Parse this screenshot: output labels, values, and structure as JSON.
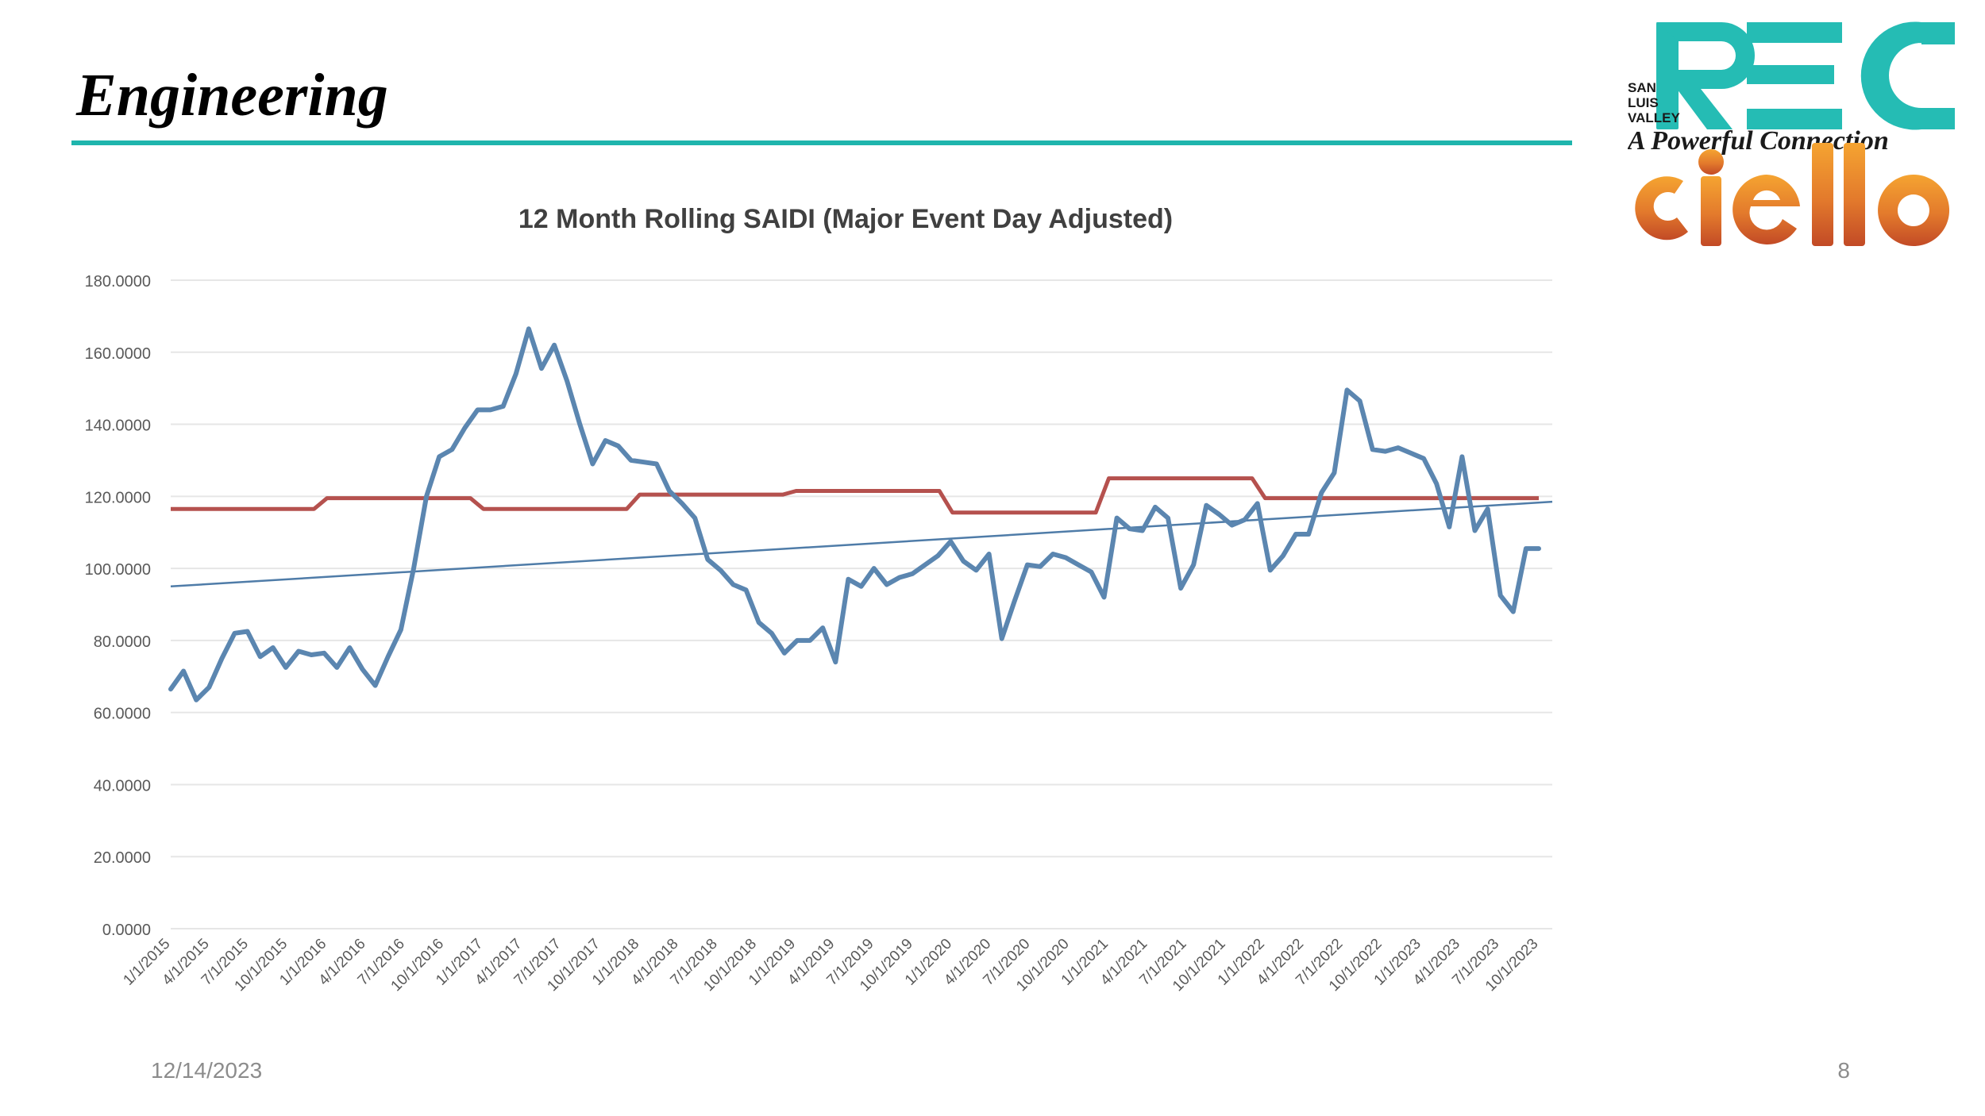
{
  "slide": {
    "title": "Engineering",
    "date": "12/14/2023",
    "page_number": "8",
    "accent_color": "#1fb5ad"
  },
  "logo": {
    "sub_lines": [
      "SAN",
      "LUIS",
      "VALLEY"
    ],
    "main_text": "REC",
    "tagline": "A Powerful Connection",
    "brand": "ciello",
    "rec_color": "#25bcb4",
    "ciello_color_top": "#f29a2e",
    "ciello_color_bottom": "#c9502a"
  },
  "chart_data": {
    "type": "line",
    "title": "12 Month Rolling SAIDI (Major Event Day Adjusted)",
    "xlabel": "",
    "ylabel": "",
    "ylim": [
      0,
      180
    ],
    "yticks": [
      "0.0000",
      "20.0000",
      "40.0000",
      "60.0000",
      "80.0000",
      "100.0000",
      "120.0000",
      "140.0000",
      "160.0000",
      "180.0000"
    ],
    "grid": true,
    "legend": "none",
    "x_tick_labels": [
      "1/1/2015",
      "4/1/2015",
      "7/1/2015",
      "10/1/2015",
      "1/1/2016",
      "4/1/2016",
      "7/1/2016",
      "10/1/2016",
      "1/1/2017",
      "4/1/2017",
      "7/1/2017",
      "10/1/2017",
      "1/1/2018",
      "4/1/2018",
      "7/1/2018",
      "10/1/2018",
      "1/1/2019",
      "4/1/2019",
      "7/1/2019",
      "10/1/2019",
      "1/1/2020",
      "4/1/2020",
      "7/1/2020",
      "10/1/2020",
      "1/1/2021",
      "4/1/2021",
      "7/1/2021",
      "10/1/2021",
      "1/1/2022",
      "4/1/2022",
      "7/1/2022",
      "10/1/2022",
      "1/1/2023",
      "4/1/2023",
      "7/1/2023",
      "10/1/2023"
    ],
    "colors": {
      "saidi": "#5b86b0",
      "reference": "#b5514e",
      "trend": "#4f7ca8",
      "grid": "#e6e6e6",
      "tick": "#595959"
    },
    "series": [
      {
        "values": [
          66.5,
          71.5,
          63.5,
          67,
          75,
          82,
          82.5,
          75.5,
          78,
          72.5,
          77,
          76,
          76.5,
          72.5,
          78,
          72,
          67.5,
          75.5,
          83,
          100,
          120,
          131,
          133,
          139,
          144,
          144,
          145,
          154,
          166.5,
          155.5,
          162,
          152,
          140,
          129,
          135.5,
          134,
          130,
          129.5,
          129,
          121.5,
          118,
          114,
          102.5,
          99.5,
          95.5,
          94,
          85,
          82,
          76.5,
          80,
          80,
          83.5,
          74,
          97,
          95,
          100,
          95.5,
          97.5,
          98.5,
          101,
          103.5,
          107.5,
          102,
          99.5,
          104,
          80.5,
          91,
          101,
          100.5,
          104,
          103,
          101,
          99,
          92,
          114,
          111,
          110.5,
          117,
          114,
          94.5,
          101,
          117.5,
          115,
          112,
          113.5,
          118,
          99.5,
          103.5,
          109.5,
          109.5,
          121,
          126.5,
          149.5,
          146.5,
          133,
          132.5,
          133.5,
          132,
          130.5,
          123.5,
          111.5,
          131,
          110.5,
          116.5,
          92.5,
          88,
          105.5,
          105.5
        ],
        "x_start_index": 0,
        "x_step_index": 0.333333
      },
      {
        "segments": [
          {
            "from": 0,
            "to": 11,
            "value": 116.5
          },
          {
            "from": 12,
            "to": 23,
            "value": 119.5
          },
          {
            "from": 24,
            "to": 35,
            "value": 116.5
          },
          {
            "from": 36,
            "to": 47,
            "value": 120.5
          },
          {
            "from": 48,
            "to": 59,
            "value": 121.5
          },
          {
            "from": 60,
            "to": 71,
            "value": 115.5
          },
          {
            "from": 72,
            "to": 83,
            "value": 125
          },
          {
            "from": 84,
            "to": 105,
            "value": 119.5
          }
        ],
        "unit": "month_index_from_1/1/2015"
      },
      {
        "type": "linear_trend",
        "start": {
          "x": "1/1/2015",
          "y": 95
        },
        "end": {
          "x": "12/1/2023",
          "y": 118.5
        }
      }
    ]
  }
}
